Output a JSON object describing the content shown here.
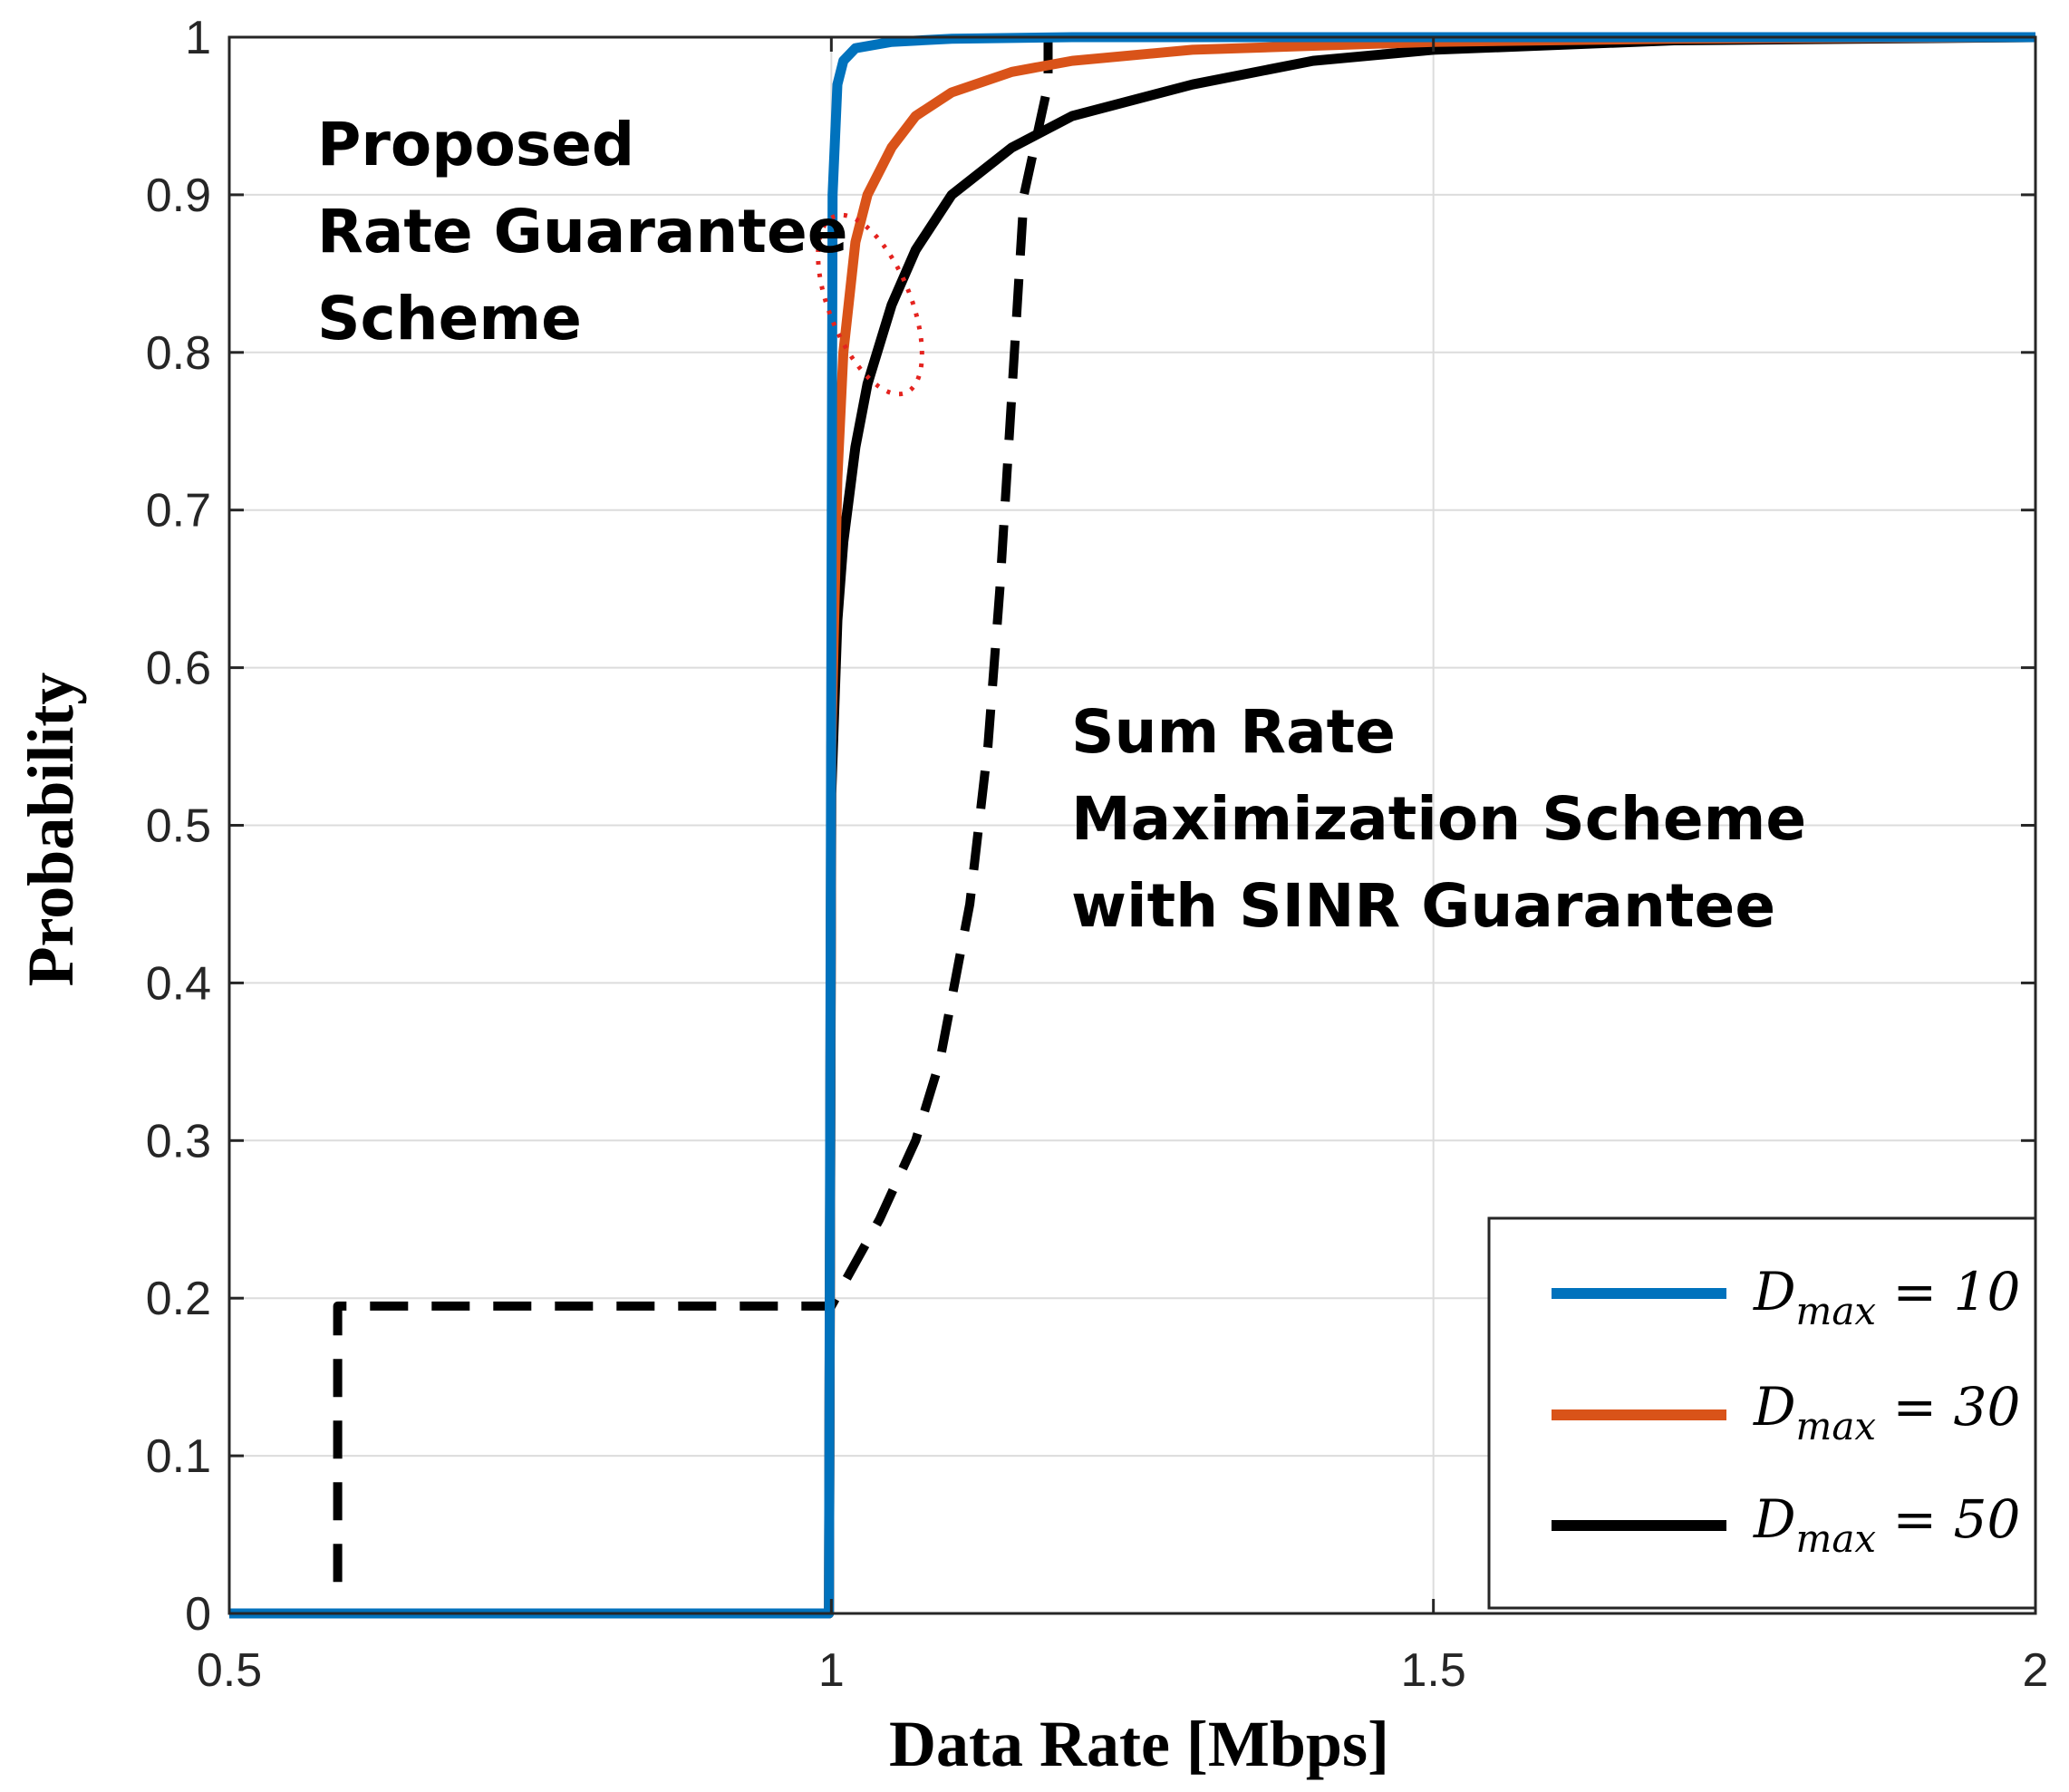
{
  "chart_data": {
    "type": "line",
    "title": "",
    "xlabel": "Data Rate [Mbps]",
    "ylabel": "Probability",
    "xlim": [
      0.5,
      2
    ],
    "ylim": [
      0,
      1
    ],
    "grid": true,
    "x_ticks": [
      "0.5",
      "1",
      "1.5",
      "2"
    ],
    "y_ticks": [
      "0",
      "0.1",
      "0.2",
      "0.3",
      "0.4",
      "0.5",
      "0.6",
      "0.7",
      "0.8",
      "0.9",
      "1"
    ],
    "legend_position": "bottom-right",
    "series": [
      {
        "name": "D_max = 10",
        "legend_var": "D",
        "legend_sub": "max",
        "legend_rest": " = 10",
        "color": "#0072BD",
        "style": "solid",
        "points": [
          [
            0.5,
            0
          ],
          [
            0.998,
            0
          ],
          [
            1.0,
            0.6
          ],
          [
            1.001,
            0.9
          ],
          [
            1.005,
            0.97
          ],
          [
            1.01,
            0.985
          ],
          [
            1.02,
            0.993
          ],
          [
            1.05,
            0.997
          ],
          [
            1.1,
            0.999
          ],
          [
            1.2,
            1.0
          ],
          [
            2.0,
            1.0
          ]
        ]
      },
      {
        "name": "D_max = 30",
        "legend_var": "D",
        "legend_sub": "max",
        "legend_rest": " = 30",
        "color": "#D95319",
        "style": "solid",
        "points": [
          [
            0.5,
            0
          ],
          [
            0.998,
            0
          ],
          [
            1.0,
            0.55
          ],
          [
            1.005,
            0.72
          ],
          [
            1.01,
            0.8
          ],
          [
            1.02,
            0.87
          ],
          [
            1.03,
            0.9
          ],
          [
            1.05,
            0.93
          ],
          [
            1.07,
            0.95
          ],
          [
            1.1,
            0.965
          ],
          [
            1.15,
            0.978
          ],
          [
            1.2,
            0.985
          ],
          [
            1.3,
            0.992
          ],
          [
            1.5,
            0.997
          ],
          [
            1.7,
            0.999
          ],
          [
            2.0,
            1.0
          ]
        ]
      },
      {
        "name": "D_max = 50",
        "legend_var": "D",
        "legend_sub": "max",
        "legend_rest": " = 50",
        "color": "#000000",
        "style": "solid",
        "points": [
          [
            0.5,
            0
          ],
          [
            0.998,
            0
          ],
          [
            1.0,
            0.52
          ],
          [
            1.005,
            0.63
          ],
          [
            1.01,
            0.68
          ],
          [
            1.02,
            0.74
          ],
          [
            1.03,
            0.78
          ],
          [
            1.05,
            0.83
          ],
          [
            1.07,
            0.865
          ],
          [
            1.1,
            0.9
          ],
          [
            1.15,
            0.93
          ],
          [
            1.2,
            0.95
          ],
          [
            1.3,
            0.97
          ],
          [
            1.4,
            0.985
          ],
          [
            1.5,
            0.992
          ],
          [
            1.7,
            0.998
          ],
          [
            2.0,
            1.0
          ]
        ]
      },
      {
        "name": "Sum Rate Maximization Scheme with SINR Guarantee",
        "color": "#000000",
        "style": "dashed",
        "points": [
          [
            0.59,
            0.02
          ],
          [
            0.59,
            0.195
          ],
          [
            1.0,
            0.195
          ],
          [
            1.04,
            0.25
          ],
          [
            1.07,
            0.3
          ],
          [
            1.09,
            0.35
          ],
          [
            1.115,
            0.45
          ],
          [
            1.13,
            0.55
          ],
          [
            1.14,
            0.65
          ],
          [
            1.152,
            0.8
          ],
          [
            1.16,
            0.9
          ],
          [
            1.18,
            0.97
          ],
          [
            1.18,
            1.0
          ],
          [
            2.0,
            1.0
          ]
        ]
      }
    ],
    "annotations": [
      {
        "lines": [
          "Proposed",
          "Rate Guarantee",
          "Scheme"
        ]
      },
      {
        "lines": [
          "Sum Rate",
          "Maximization Scheme",
          "with SINR Guarantee"
        ]
      }
    ]
  }
}
